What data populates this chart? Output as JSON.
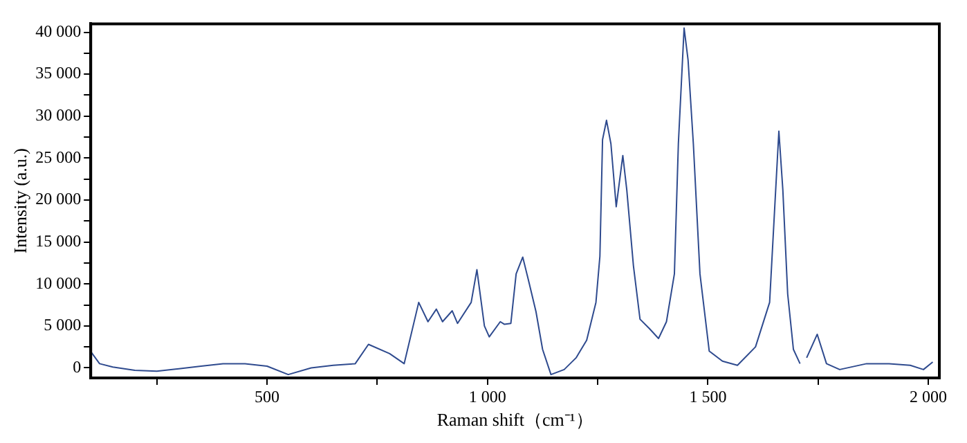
{
  "chart_data": {
    "type": "line",
    "xlabel": "Raman shift（cm⁻¹）",
    "ylabel": "Intensity (a.u.)",
    "xlim": [
      100,
      2025
    ],
    "ylim": [
      -1200,
      41000
    ],
    "xticks": [
      {
        "value": 250,
        "label": null
      },
      {
        "value": 500,
        "label": "500"
      },
      {
        "value": 750,
        "label": null
      },
      {
        "value": 1000,
        "label": "1 000"
      },
      {
        "value": 1250,
        "label": null
      },
      {
        "value": 1500,
        "label": "1 500"
      },
      {
        "value": 1750,
        "label": null
      },
      {
        "value": 2000,
        "label": "2 000"
      }
    ],
    "yticks": [
      {
        "value": 0,
        "label": "0"
      },
      {
        "value": 2500,
        "label": null
      },
      {
        "value": 5000,
        "label": "5 000"
      },
      {
        "value": 7500,
        "label": null
      },
      {
        "value": 10000,
        "label": "10 000"
      },
      {
        "value": 12500,
        "label": null
      },
      {
        "value": 15000,
        "label": "15 000"
      },
      {
        "value": 17500,
        "label": null
      },
      {
        "value": 20000,
        "label": "20 000"
      },
      {
        "value": 22500,
        "label": null
      },
      {
        "value": 25000,
        "label": "25 000"
      },
      {
        "value": 27500,
        "label": null
      },
      {
        "value": 30000,
        "label": "30 000"
      },
      {
        "value": 32500,
        "label": null
      },
      {
        "value": 35000,
        "label": "35 000"
      },
      {
        "value": 37500,
        "label": null
      },
      {
        "value": 40000,
        "label": "40 000"
      }
    ],
    "grid": false,
    "legend": false,
    "marker": "none",
    "line_style": "solid",
    "series": [
      {
        "color": "#2e4a8e",
        "x": [
          102,
          120,
          150,
          200,
          250,
          300,
          350,
          400,
          450,
          500,
          548,
          600,
          650,
          700,
          730,
          778,
          811,
          844,
          865,
          884,
          898,
          920,
          932,
          963,
          976,
          993,
          1004,
          1029,
          1038,
          1053,
          1065,
          1080,
          1095,
          1110,
          1125,
          1144,
          1174,
          1201,
          1225,
          1246,
          1255,
          1261,
          1270,
          1280,
          1292,
          1307,
          1316,
          1331,
          1346,
          1367,
          1388,
          1406,
          1424,
          1433,
          1446,
          1455,
          1467,
          1482,
          1503,
          1533,
          1567,
          1608,
          1640,
          1652,
          1661,
          1670,
          1681,
          1694,
          1709,
          1716,
          1724,
          1748,
          1769,
          1799,
          1860,
          1911,
          1959,
          1989,
          2010
        ],
        "values": [
          1800,
          500,
          100,
          -300,
          -400,
          -100,
          200,
          500,
          500,
          200,
          -800,
          0,
          300,
          500,
          2800,
          1700,
          500,
          7800,
          5500,
          7000,
          5500,
          6800,
          5300,
          7800,
          11700,
          5000,
          3700,
          5500,
          5200,
          5300,
          11200,
          13200,
          10000,
          6700,
          2200,
          -800,
          -200,
          1200,
          3300,
          7800,
          13300,
          27200,
          29500,
          26700,
          19200,
          25300,
          21200,
          12200,
          5800,
          4700,
          3500,
          5500,
          11200,
          26700,
          40500,
          36700,
          26700,
          11200,
          2000,
          800,
          300,
          2500,
          7800,
          19500,
          28200,
          21200,
          8800,
          2200,
          500,
          null,
          1200,
          4000,
          500,
          -200,
          500,
          500,
          300,
          -200,
          700
        ]
      }
    ]
  }
}
